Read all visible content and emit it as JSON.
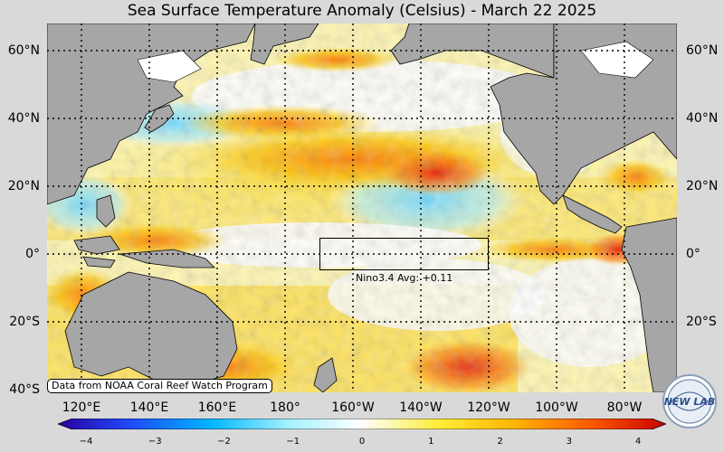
{
  "title": "Sea Surface Temperature Anomaly (Celsius) - March 22 2025",
  "lat_labels": [
    "60°N",
    "40°N",
    "20°N",
    "0°",
    "20°S",
    "40°S"
  ],
  "lat_labels_right": [
    "60°N",
    "40°N",
    "20°N",
    "0°",
    "20°S"
  ],
  "lon_labels": [
    "120°E",
    "140°E",
    "160°E",
    "180°",
    "160°W",
    "140°W",
    "120°W",
    "100°W",
    "80°W"
  ],
  "region_box": {
    "name": "Nino3.4",
    "label": "Nino3.4 Avg: +0.11",
    "lat_range": [
      -5,
      5
    ],
    "lon_range": [
      "170°W",
      "120°W"
    ],
    "average_anomaly": 0.11
  },
  "credit": "Data from NOAA Coral Reef Watch Program",
  "colorbar": {
    "min": -4,
    "max": 4,
    "ticks": [
      "−4",
      "−3",
      "−2",
      "−1",
      "0",
      "1",
      "2",
      "3",
      "4"
    ],
    "colors": [
      "#2a00a0",
      "#1e4fff",
      "#00b4ff",
      "#9ff0ff",
      "#ffffff",
      "#ffee3a",
      "#ffb400",
      "#ff5a00",
      "#c80000"
    ]
  },
  "logo_text": "NEW LAB",
  "land_color": "#a6a6a6"
}
